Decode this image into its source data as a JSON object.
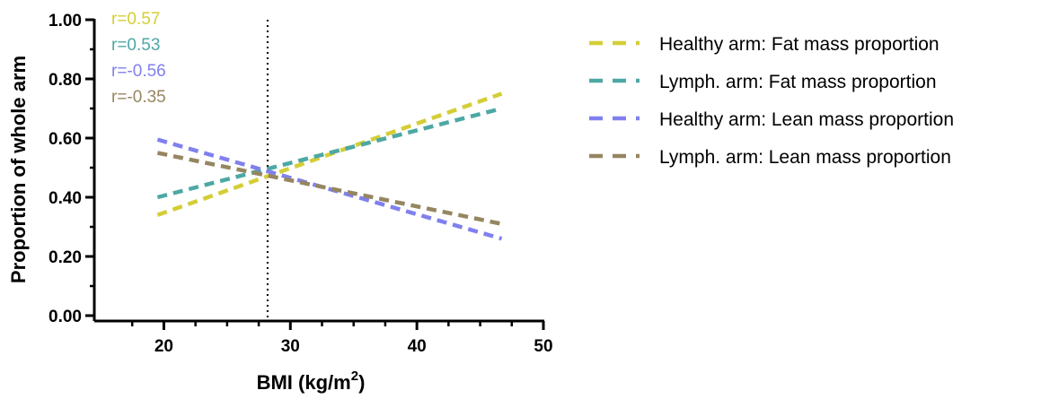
{
  "chart_data": {
    "type": "line",
    "title": "",
    "xlabel": "BMI (kg/m",
    "xlabel_sup": "2",
    "xlabel_close": ")",
    "ylabel": "Proportion of whole arm",
    "xlim": [
      15,
      50
    ],
    "ylim": [
      0,
      1
    ],
    "x_ticks": [
      20,
      30,
      40,
      50
    ],
    "x_tick_labels": [
      "20",
      "30",
      "40",
      "50"
    ],
    "x_minor_step": 2.5,
    "y_ticks": [
      0,
      0.2,
      0.4,
      0.6,
      0.8,
      1.0
    ],
    "y_tick_labels": [
      "0.00",
      "0.20",
      "0.40",
      "0.60",
      "0.80",
      "1.00"
    ],
    "reference_line": {
      "x": 28.2,
      "style": "dotted"
    },
    "grid": false,
    "legend_position": "right",
    "series": [
      {
        "name": "Healthy arm: Fat mass proportion",
        "x": [
          19.5,
          46.7
        ],
        "y": [
          0.34,
          0.75
        ],
        "color": "#D4CE36",
        "r": "r=0.57"
      },
      {
        "name": "Lymph. arm: Fat mass proportion",
        "x": [
          19.5,
          46.7
        ],
        "y": [
          0.4,
          0.7
        ],
        "color": "#4DA8A4",
        "r": "r=0.53"
      },
      {
        "name": "Healthy arm: Lean mass proportion",
        "x": [
          19.5,
          46.7
        ],
        "y": [
          0.595,
          0.26
        ],
        "color": "#8080EE",
        "r": "r=-0.56"
      },
      {
        "name": "Lymph. arm: Lean mass proportion",
        "x": [
          19.5,
          46.7
        ],
        "y": [
          0.55,
          0.31
        ],
        "color": "#968660",
        "r": "r=-0.35"
      }
    ]
  }
}
